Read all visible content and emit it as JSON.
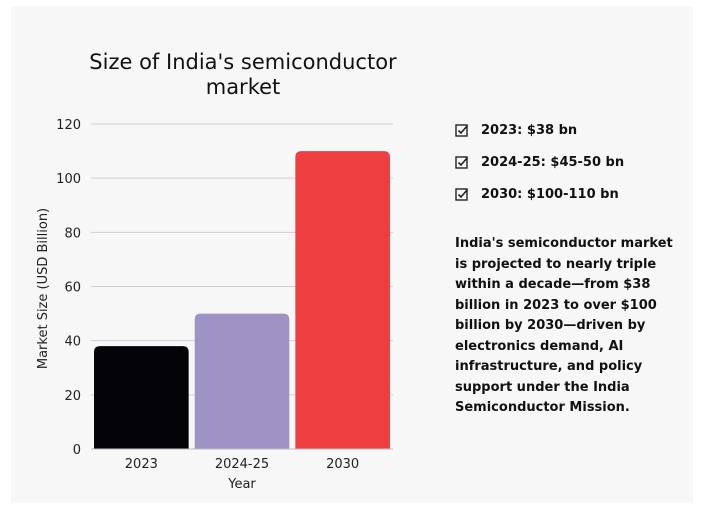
{
  "chart_data": {
    "type": "bar",
    "title": "Size of India's semiconductor market",
    "xlabel": "Year",
    "ylabel": "Market Size (USD Billion)",
    "categories": [
      "2023",
      "2024-25",
      "2030"
    ],
    "values": [
      38,
      50,
      110
    ],
    "colors": [
      "#040408",
      "#9f93c5",
      "#ef3e40"
    ],
    "ylim": [
      0,
      120
    ],
    "yticks": [
      0,
      20,
      40,
      60,
      80,
      100,
      120
    ],
    "grid": true
  },
  "highlights": [
    {
      "text": "2023: $38 bn",
      "icon": "checkbox-icon"
    },
    {
      "text": "2024-25: $45-50 bn",
      "icon": "checkbox-icon"
    },
    {
      "text": "2030: $100-110 bn",
      "icon": "checkbox-icon"
    }
  ],
  "summary": "India's semiconductor market is projected to nearly triple within a decade—from $38 billion in 2023 to over $100 billion by 2030—driven by electronics demand, AI infrastructure, and policy support under the India Semiconductor Mission."
}
